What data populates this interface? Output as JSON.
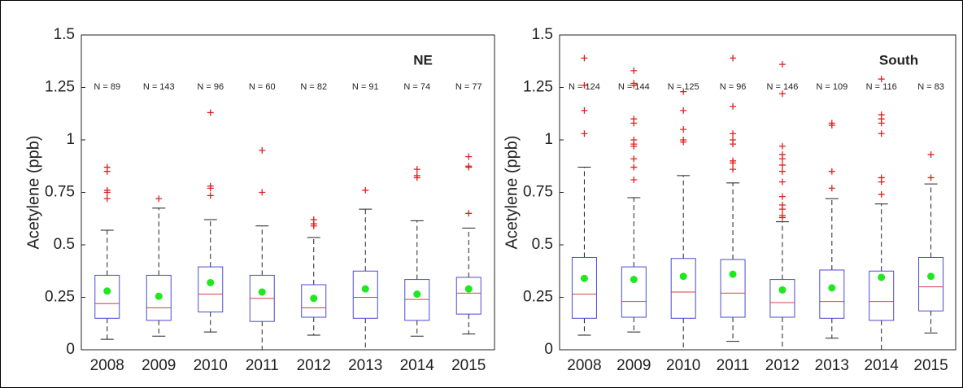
{
  "chart_data": [
    {
      "type": "box",
      "annotation": "NE",
      "ylabel": "Acetylene (ppb)",
      "categories": [
        "2008",
        "2009",
        "2010",
        "2011",
        "2012",
        "2013",
        "2014",
        "2015"
      ],
      "n_labels": [
        "N = 89",
        "N = 143",
        "N = 96",
        "N = 60",
        "N = 82",
        "N = 91",
        "N = 74",
        "N = 77"
      ],
      "ylim": [
        0,
        1.5
      ],
      "yticks": [
        0,
        0.25,
        0.5,
        0.75,
        1,
        1.25,
        1.5
      ],
      "box_color": "#4a4ad0",
      "median_color": "#d04040",
      "mean_color": "#1ee81e",
      "outlier_color": "#e02020",
      "boxes": [
        {
          "whisker_low": 0.05,
          "q1": 0.15,
          "median": 0.22,
          "q3": 0.355,
          "whisker_high": 0.57,
          "mean": 0.28,
          "outliers": [
            0.87,
            0.85,
            0.76,
            0.75,
            0.72
          ]
        },
        {
          "whisker_low": 0.065,
          "q1": 0.14,
          "median": 0.2,
          "q3": 0.355,
          "whisker_high": 0.675,
          "mean": 0.255,
          "outliers": [
            0.72
          ]
        },
        {
          "whisker_low": 0.085,
          "q1": 0.18,
          "median": 0.265,
          "q3": 0.395,
          "whisker_high": 0.62,
          "mean": 0.32,
          "outliers": [
            1.13,
            0.78,
            0.77,
            0.735
          ]
        },
        {
          "whisker_low": 0,
          "q1": 0.135,
          "median": 0.245,
          "q3": 0.355,
          "whisker_high": 0.59,
          "mean": 0.275,
          "outliers": [
            0.95,
            0.75
          ]
        },
        {
          "whisker_low": 0.07,
          "q1": 0.155,
          "median": 0.2,
          "q3": 0.31,
          "whisker_high": 0.535,
          "mean": 0.245,
          "outliers": [
            0.62,
            0.6,
            0.59
          ]
        },
        {
          "whisker_low": 0,
          "q1": 0.15,
          "median": 0.25,
          "q3": 0.375,
          "whisker_high": 0.67,
          "mean": 0.29,
          "outliers": [
            0.76
          ]
        },
        {
          "whisker_low": 0.065,
          "q1": 0.14,
          "median": 0.24,
          "q3": 0.335,
          "whisker_high": 0.615,
          "mean": 0.265,
          "outliers": [
            0.86,
            0.83,
            0.82
          ]
        },
        {
          "whisker_low": 0.075,
          "q1": 0.17,
          "median": 0.27,
          "q3": 0.345,
          "whisker_high": 0.58,
          "mean": 0.29,
          "outliers": [
            0.92,
            0.875,
            0.87,
            0.65
          ]
        }
      ]
    },
    {
      "type": "box",
      "annotation": "South",
      "ylabel": "Acetylene (ppb)",
      "categories": [
        "2008",
        "2009",
        "2010",
        "2011",
        "2012",
        "2013",
        "2014",
        "2015"
      ],
      "n_labels": [
        "N = 124",
        "N = 144",
        "N = 125",
        "N = 96",
        "N = 146",
        "N = 109",
        "N = 116",
        "N = 83"
      ],
      "ylim": [
        0,
        1.5
      ],
      "yticks": [
        0,
        0.25,
        0.5,
        0.75,
        1,
        1.25,
        1.5
      ],
      "box_color": "#4a4ad0",
      "median_color": "#d04040",
      "mean_color": "#1ee81e",
      "outlier_color": "#e02020",
      "boxes": [
        {
          "whisker_low": 0.07,
          "q1": 0.15,
          "median": 0.265,
          "q3": 0.44,
          "whisker_high": 0.87,
          "mean": 0.34,
          "outliers": [
            1.39,
            1.26,
            1.14,
            1.03
          ]
        },
        {
          "whisker_low": 0.085,
          "q1": 0.155,
          "median": 0.23,
          "q3": 0.395,
          "whisker_high": 0.725,
          "mean": 0.335,
          "outliers": [
            1.33,
            1.27,
            1.26,
            1.1,
            1.08,
            1.0,
            0.98,
            0.97,
            0.91,
            0.87,
            0.81
          ]
        },
        {
          "whisker_low": 0,
          "q1": 0.15,
          "median": 0.275,
          "q3": 0.435,
          "whisker_high": 0.83,
          "mean": 0.35,
          "outliers": [
            1.23,
            1.14,
            1.05,
            1.0,
            0.99
          ]
        },
        {
          "whisker_low": 0.04,
          "q1": 0.155,
          "median": 0.27,
          "q3": 0.43,
          "whisker_high": 0.795,
          "mean": 0.36,
          "outliers": [
            1.39,
            1.16,
            1.03,
            1.0,
            0.98,
            0.9,
            0.89,
            0.86
          ]
        },
        {
          "whisker_low": 0,
          "q1": 0.155,
          "median": 0.225,
          "q3": 0.335,
          "whisker_high": 0.61,
          "mean": 0.285,
          "outliers": [
            1.36,
            1.22,
            0.97,
            0.93,
            0.91,
            0.88,
            0.85,
            0.8,
            0.73,
            0.69,
            0.67,
            0.64,
            0.63
          ]
        },
        {
          "whisker_low": 0.055,
          "q1": 0.15,
          "median": 0.23,
          "q3": 0.38,
          "whisker_high": 0.72,
          "mean": 0.295,
          "outliers": [
            1.08,
            1.07,
            0.85,
            0.77
          ]
        },
        {
          "whisker_low": 0,
          "q1": 0.14,
          "median": 0.23,
          "q3": 0.375,
          "whisker_high": 0.695,
          "mean": 0.345,
          "outliers": [
            1.29,
            1.12,
            1.1,
            1.08,
            1.03,
            0.82,
            0.8,
            0.74
          ]
        },
        {
          "whisker_low": 0.08,
          "q1": 0.185,
          "median": 0.3,
          "q3": 0.44,
          "whisker_high": 0.79,
          "mean": 0.35,
          "outliers": [
            0.93,
            0.82
          ]
        }
      ]
    }
  ]
}
